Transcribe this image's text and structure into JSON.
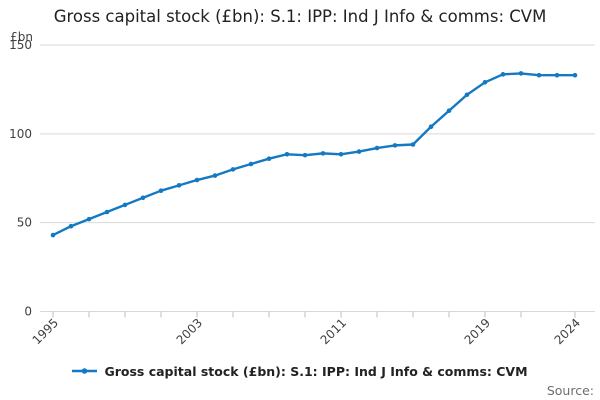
{
  "title": "Gross capital stock (£bn): S.1: IPP: Ind J Info & comms: CVM",
  "y_unit_label": "£bn",
  "source_label": "Source:",
  "legend": {
    "label": "Gross capital stock (£bn): S.1: IPP: Ind J Info & comms: CVM",
    "position": "bottom-center"
  },
  "colors": {
    "line": "#1379c2",
    "grid": "#d9d9d9",
    "axis_tick": "#b9c0c7",
    "axis_text": "#414042",
    "title_text": "#222222",
    "source_text": "#6e6e6e"
  },
  "chart_data": {
    "type": "line",
    "title": "Gross capital stock (£bn): S.1: IPP: Ind J Info & comms: CVM",
    "xlabel": "",
    "ylabel": "£bn",
    "x": [
      1995,
      1996,
      1997,
      1998,
      1999,
      2000,
      2001,
      2002,
      2003,
      2004,
      2005,
      2006,
      2007,
      2008,
      2009,
      2010,
      2011,
      2012,
      2013,
      2014,
      2015,
      2016,
      2017,
      2018,
      2019,
      2020,
      2021,
      2022,
      2023,
      2024
    ],
    "values": [
      43,
      48,
      52,
      56,
      60,
      64,
      68,
      71,
      74,
      76.5,
      80,
      83,
      86,
      88.5,
      88,
      89,
      88.5,
      90,
      92,
      93.5,
      94,
      104,
      113,
      122,
      129,
      133.5,
      134,
      133,
      133,
      133
    ],
    "series_name": "Gross capital stock (£bn): S.1: IPP: Ind J Info & comms: CVM",
    "ylim": [
      0,
      150
    ],
    "yticks": [
      0,
      50,
      100,
      150
    ],
    "xticks": [
      1995,
      1997,
      1999,
      2001,
      2003,
      2005,
      2007,
      2009,
      2011,
      2013,
      2015,
      2017,
      2019,
      2021,
      2024
    ],
    "xtick_labeled": [
      1995,
      2003,
      2011,
      2019,
      2024
    ],
    "grid": "horizontal",
    "markers": true,
    "legend_position": "bottom"
  }
}
